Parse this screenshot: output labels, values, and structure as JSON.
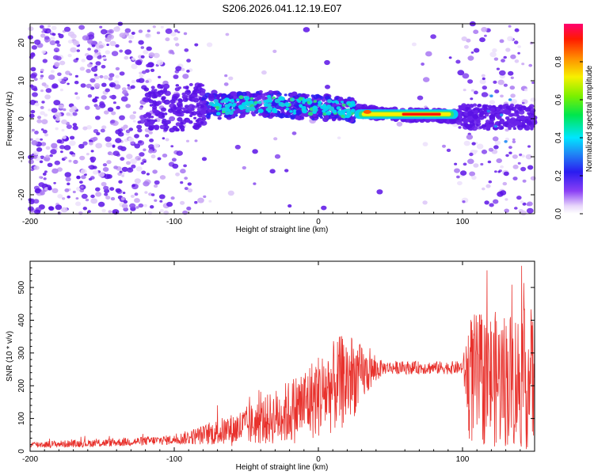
{
  "title": "S206.2026.041.12.19.E07",
  "chart_data": [
    {
      "type": "heatmap",
      "xlabel": "Height of straight line (km)",
      "ylabel": "Frequency (Hz)",
      "xlim": [
        -200,
        150
      ],
      "ylim": [
        -25,
        25
      ],
      "xticks": [
        -200,
        -100,
        0,
        100
      ],
      "yticks": [
        -20,
        -10,
        0,
        10,
        20
      ],
      "colorbar": {
        "label": "Normalized spectral amplitude",
        "range": [
          0,
          1
        ],
        "ticks": [
          "0.0",
          "0.2",
          "0.4",
          "0.6",
          "0.8"
        ]
      },
      "ridge": [
        {
          "x": -80,
          "f": 3.0
        },
        {
          "x": -60,
          "f": 3.5
        },
        {
          "x": -40,
          "f": 4.0
        },
        {
          "x": -20,
          "f": 3.5
        },
        {
          "x": 0,
          "f": 3.0
        },
        {
          "x": 20,
          "f": 2.5
        },
        {
          "x": 40,
          "f": 1.5
        },
        {
          "x": 60,
          "f": 1.0
        },
        {
          "x": 80,
          "f": 1.0
        },
        {
          "x": 95,
          "f": 0.5
        }
      ],
      "grid": false
    },
    {
      "type": "line",
      "xlabel": "Height of straight line (km)",
      "ylabel": "SNR (10 * v/v)",
      "xlim": [
        -200,
        150
      ],
      "ylim": [
        0,
        580
      ],
      "xticks": [
        -200,
        -100,
        0,
        100
      ],
      "yticks": [
        0,
        100,
        200,
        300,
        400,
        500
      ],
      "color": "#e8322d",
      "envelope": [
        {
          "x": -200,
          "mean": 20,
          "spread": 10
        },
        {
          "x": -150,
          "mean": 25,
          "spread": 12
        },
        {
          "x": -100,
          "mean": 35,
          "spread": 15
        },
        {
          "x": -80,
          "mean": 50,
          "spread": 30
        },
        {
          "x": -60,
          "mean": 65,
          "spread": 50
        },
        {
          "x": -40,
          "mean": 90,
          "spread": 70
        },
        {
          "x": -20,
          "mean": 120,
          "spread": 100
        },
        {
          "x": 0,
          "mean": 170,
          "spread": 130
        },
        {
          "x": 20,
          "mean": 220,
          "spread": 150
        },
        {
          "x": 35,
          "mean": 240,
          "spread": 60
        },
        {
          "x": 45,
          "mean": 255,
          "spread": 20
        },
        {
          "x": 100,
          "mean": 255,
          "spread": 20
        },
        {
          "x": 105,
          "mean": 220,
          "spread": 200
        },
        {
          "x": 150,
          "mean": 220,
          "spread": 220
        }
      ]
    }
  ]
}
